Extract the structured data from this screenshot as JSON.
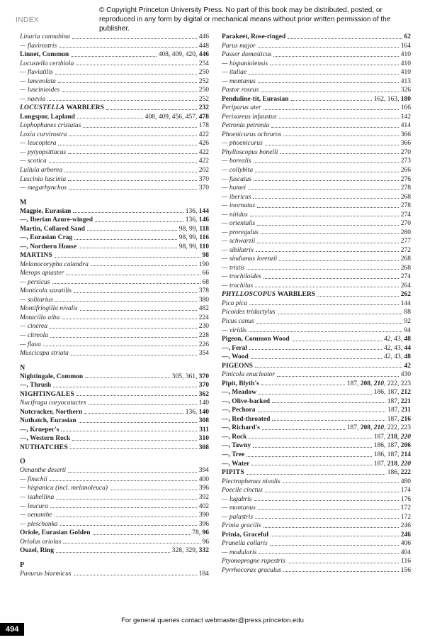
{
  "header": {
    "label": "INDEX",
    "copyright": "© Copyright Princeton University Press. No part of this book may be distributed, posted, or reproduced in any form by digital or mechanical means without prior written permission of the publisher."
  },
  "leftColumn": [
    {
      "label": "Linaria cannabina",
      "pages": "446",
      "style": "italic"
    },
    {
      "label": "— flavirostris",
      "pages": "448",
      "style": "italic"
    },
    {
      "label": "Linnet, Common",
      "pages": "408, 409, 420, 446",
      "style": "bold",
      "pagesStyle": "mixed-last-bold"
    },
    {
      "label": "Locustella certhiola",
      "pages": "254",
      "style": "italic"
    },
    {
      "label": "— fluviatilis",
      "pages": "250",
      "style": "italic"
    },
    {
      "label": "— lanceolata",
      "pages": "252",
      "style": "italic"
    },
    {
      "label": "— luscinioides",
      "pages": "250",
      "style": "italic"
    },
    {
      "label": "— naevia",
      "pages": "252",
      "style": "italic"
    },
    {
      "label": "LOCUSTELLA WARBLERS",
      "pages": "232",
      "style": "bold-italic-caps"
    },
    {
      "label": "Longspur, Lapland",
      "pages": "408, 409, 456, 457, 478",
      "style": "bold",
      "pagesStyle": "mixed-last-bold"
    },
    {
      "label": "Lophophanes cristatus",
      "pages": "178",
      "style": "italic"
    },
    {
      "label": "Loxia curvirostra",
      "pages": "422",
      "style": "italic"
    },
    {
      "label": "— leucoptera",
      "pages": "426",
      "style": "italic"
    },
    {
      "label": "— pytyopsittacus",
      "pages": "422",
      "style": "italic"
    },
    {
      "label": "— scotica",
      "pages": "422",
      "style": "italic"
    },
    {
      "label": "Lullula arborea",
      "pages": "202",
      "style": "italic"
    },
    {
      "label": "Luscinia luscinia",
      "pages": "370",
      "style": "italic"
    },
    {
      "label": "— megarhynchos",
      "pages": "370",
      "style": "italic"
    },
    {
      "label": "M",
      "section": true
    },
    {
      "label": "Magpie, Eurasian",
      "pages": "136, 144",
      "style": "bold",
      "pagesStyle": "mixed-last-bold"
    },
    {
      "label": "—, Iberian Azure-winged",
      "pages": "136, 146",
      "style": "bold",
      "pagesStyle": "mixed-last-bold"
    },
    {
      "label": "Martin, Collared Sand",
      "pages": "98, 99, 118",
      "style": "bold",
      "pagesStyle": "mixed-last-bold"
    },
    {
      "label": "—, Eurasian Crag",
      "pages": "98, 99, 116",
      "style": "bold",
      "pagesStyle": "mixed-last-bold"
    },
    {
      "label": "—, Northern House",
      "pages": "98, 99, 110",
      "style": "bold",
      "pagesStyle": "mixed-last-bold"
    },
    {
      "label": "MARTINS",
      "pages": "98",
      "style": "bold-caps"
    },
    {
      "label": "Melanocorypha calandra",
      "pages": "190",
      "style": "italic"
    },
    {
      "label": "Merops apiaster",
      "pages": "66",
      "style": "italic"
    },
    {
      "label": "— persicus",
      "pages": "68",
      "style": "italic"
    },
    {
      "label": "Monticola saxatilis",
      "pages": "378",
      "style": "italic"
    },
    {
      "label": "— solitarius",
      "pages": "380",
      "style": "italic"
    },
    {
      "label": "Montifringilla nivalis",
      "pages": "482",
      "style": "italic"
    },
    {
      "label": "Motacilla alba",
      "pages": "224",
      "style": "italic"
    },
    {
      "label": "— cinerea",
      "pages": "230",
      "style": "italic"
    },
    {
      "label": "— citreola",
      "pages": "228",
      "style": "italic"
    },
    {
      "label": "— flava",
      "pages": "226",
      "style": "italic"
    },
    {
      "label": "Muscicapa striata",
      "pages": "354",
      "style": "italic"
    },
    {
      "label": "N",
      "section": true
    },
    {
      "label": "Nightingale, Common",
      "pages": "305, 361, 370",
      "style": "bold",
      "pagesStyle": "mixed-last-bold"
    },
    {
      "label": "—, Thrush",
      "pages": "370",
      "style": "bold"
    },
    {
      "label": "NIGHTINGALES",
      "pages": "362",
      "style": "bold-caps"
    },
    {
      "label": "Nucifraga caryocatactes",
      "pages": "140",
      "style": "italic"
    },
    {
      "label": "Nutcracker, Northern",
      "pages": "136, 140",
      "style": "bold",
      "pagesStyle": "mixed-last-bold"
    },
    {
      "label": "Nuthatch, Eurasian",
      "pages": "308",
      "style": "bold"
    },
    {
      "label": "—, Krueper's",
      "pages": "311",
      "style": "bold"
    },
    {
      "label": "—, Western Rock",
      "pages": "310",
      "style": "bold"
    },
    {
      "label": "NUTHATCHES",
      "pages": "308",
      "style": "bold-caps"
    },
    {
      "label": "O",
      "section": true
    },
    {
      "label": "Oenanthe deserti",
      "pages": "394",
      "style": "italic"
    },
    {
      "label": "— finschii",
      "pages": "400",
      "style": "italic"
    },
    {
      "label": "— hispanica (incl. melanoleuca)",
      "pages": "396",
      "style": "italic"
    },
    {
      "label": "— isabellina",
      "pages": "392",
      "style": "italic"
    },
    {
      "label": "— leucura",
      "pages": "402",
      "style": "italic"
    },
    {
      "label": "— oenanthe",
      "pages": "390",
      "style": "italic"
    },
    {
      "label": "— pleschanka",
      "pages": "396",
      "style": "italic"
    },
    {
      "label": "Oriole, Eurasian Golden",
      "pages": "78, 96",
      "style": "bold",
      "pagesStyle": "mixed-last-bold"
    },
    {
      "label": "Oriolus oriolus",
      "pages": "96",
      "style": "italic"
    },
    {
      "label": "Ouzel, Ring",
      "pages": "328, 329, 332",
      "style": "bold",
      "pagesStyle": "mixed-last-bold"
    },
    {
      "label": "P",
      "section": true
    },
    {
      "label": "Panurus biarmicus",
      "pages": "184",
      "style": "italic"
    }
  ],
  "rightColumn": [
    {
      "label": "Parakeet, Rose-ringed",
      "pages": "62",
      "style": "bold"
    },
    {
      "label": "Parus major",
      "pages": "164",
      "style": "italic"
    },
    {
      "label": "Passer domesticus",
      "pages": "410",
      "style": "italic"
    },
    {
      "label": "— hispaniolensis",
      "pages": "410",
      "style": "italic"
    },
    {
      "label": "— italiae",
      "pages": "410",
      "style": "italic"
    },
    {
      "label": "— montanus",
      "pages": "413",
      "style": "italic"
    },
    {
      "label": "Pastor roseus",
      "pages": "326",
      "style": "italic"
    },
    {
      "label": "Penduline-tit, Eurasian",
      "pages": "162, 163, 180",
      "style": "bold",
      "pagesStyle": "mixed-last-bold"
    },
    {
      "label": "Periparus ater",
      "pages": "166",
      "style": "italic"
    },
    {
      "label": "Perisoreus infaustus",
      "pages": "142",
      "style": "italic"
    },
    {
      "label": "Petronia petronia",
      "pages": "414",
      "style": "italic"
    },
    {
      "label": "Phoenicurus ochruros",
      "pages": "366",
      "style": "italic"
    },
    {
      "label": "— phoenicurus",
      "pages": "366",
      "style": "italic"
    },
    {
      "label": "Phylloscopus bonelli",
      "pages": "270",
      "style": "italic"
    },
    {
      "label": "— borealis",
      "pages": "273",
      "style": "italic"
    },
    {
      "label": "— collybita",
      "pages": "266",
      "style": "italic"
    },
    {
      "label": "— fuscatus",
      "pages": "276",
      "style": "italic"
    },
    {
      "label": "— humei",
      "pages": "278",
      "style": "italic"
    },
    {
      "label": "— ibericus",
      "pages": "268",
      "style": "italic"
    },
    {
      "label": "— inornatus",
      "pages": "278",
      "style": "italic"
    },
    {
      "label": "— nitidus",
      "pages": "274",
      "style": "italic"
    },
    {
      "label": "— orientalis",
      "pages": "270",
      "style": "italic"
    },
    {
      "label": "— proregulus",
      "pages": "280",
      "style": "italic"
    },
    {
      "label": "— schwarzii",
      "pages": "277",
      "style": "italic"
    },
    {
      "label": "— sibilatrix",
      "pages": "272",
      "style": "italic"
    },
    {
      "label": "— sindianus lorenzii",
      "pages": "268",
      "style": "italic"
    },
    {
      "label": "— tristis",
      "pages": "268",
      "style": "italic"
    },
    {
      "label": "— trochiloides",
      "pages": "274",
      "style": "italic"
    },
    {
      "label": "— trochilus",
      "pages": "264",
      "style": "italic"
    },
    {
      "label": "PHYLLOSCOPUS WARBLERS",
      "pages": "262",
      "style": "bold-italic-caps"
    },
    {
      "label": "Pica pica",
      "pages": "144",
      "style": "italic"
    },
    {
      "label": "Picoides tridactylus",
      "pages": "88",
      "style": "italic"
    },
    {
      "label": "Picus canus",
      "pages": "92",
      "style": "italic"
    },
    {
      "label": "— viridis",
      "pages": "94",
      "style": "italic"
    },
    {
      "label": "Pigeon, Common Wood",
      "pages": "42, 43, 48",
      "style": "bold",
      "pagesStyle": "mixed-last-bold"
    },
    {
      "label": "—, Feral",
      "pages": "42, 43, 44",
      "style": "bold",
      "pagesStyle": "mixed-last-bold"
    },
    {
      "label": "—, Wood",
      "pages": "42, 43, 48",
      "style": "bold",
      "pagesStyle": "mixed-last-bold"
    },
    {
      "label": "PIGEONS",
      "pages": "42",
      "style": "bold-caps"
    },
    {
      "label": "Pinicola enucleator",
      "pages": "430",
      "style": "italic"
    },
    {
      "label": "Pipit, Blyth's",
      "pages": "187, 208, 210, 222, 223",
      "style": "bold",
      "pagesStyle": "mix-italic"
    },
    {
      "label": "—, Meadow",
      "pages": "186, 187, 212",
      "style": "bold",
      "pagesStyle": "mixed-last-bold"
    },
    {
      "label": "—, Olive-backed",
      "pages": "187, 221",
      "style": "bold",
      "pagesStyle": "mixed-last-bold"
    },
    {
      "label": "—, Pechora",
      "pages": "187, 211",
      "style": "bold",
      "pagesStyle": "mixed-last-bold"
    },
    {
      "label": "—, Red-throated",
      "pages": "187, 216",
      "style": "bold",
      "pagesStyle": "mixed-last-bold"
    },
    {
      "label": "—, Richard's",
      "pages": "187, 208, 210, 222, 223",
      "style": "bold",
      "pagesStyle": "mix-italic"
    },
    {
      "label": "—, Rock",
      "pages": "187, 218, 220",
      "style": "bold",
      "pagesStyle": "mix-italic2"
    },
    {
      "label": "—, Tawny",
      "pages": "186, 187, 206",
      "style": "bold",
      "pagesStyle": "mixed-last-bold"
    },
    {
      "label": "—, Tree",
      "pages": "186, 187, 214",
      "style": "bold",
      "pagesStyle": "mixed-last-bold"
    },
    {
      "label": "—, Water",
      "pages": "187, 218, 220",
      "style": "bold",
      "pagesStyle": "mix-italic2"
    },
    {
      "label": "PIPITS",
      "pages": "186, 222",
      "style": "bold-caps"
    },
    {
      "label": "Plectrophenax nivalis",
      "pages": "480",
      "style": "italic"
    },
    {
      "label": "Poecile cinctus",
      "pages": "174",
      "style": "italic"
    },
    {
      "label": "— lugubris",
      "pages": "176",
      "style": "italic"
    },
    {
      "label": "— montanus",
      "pages": "172",
      "style": "italic"
    },
    {
      "label": "— palustris",
      "pages": "172",
      "style": "italic"
    },
    {
      "label": "Prinia gracilis",
      "pages": "246",
      "style": "italic"
    },
    {
      "label": "Prinia, Graceful",
      "pages": "246",
      "style": "bold"
    },
    {
      "label": "Prunella collaris",
      "pages": "406",
      "style": "italic"
    },
    {
      "label": "— modularis",
      "pages": "404",
      "style": "italic"
    },
    {
      "label": "Ptyonoprogne rupestris",
      "pages": "116",
      "style": "italic"
    },
    {
      "label": "Pyrrhocorax graculus",
      "pages": "156",
      "style": "italic"
    }
  ],
  "footer": {
    "query": "For general queries contact webmaster@press.princeton.edu",
    "pageNum": "494"
  }
}
